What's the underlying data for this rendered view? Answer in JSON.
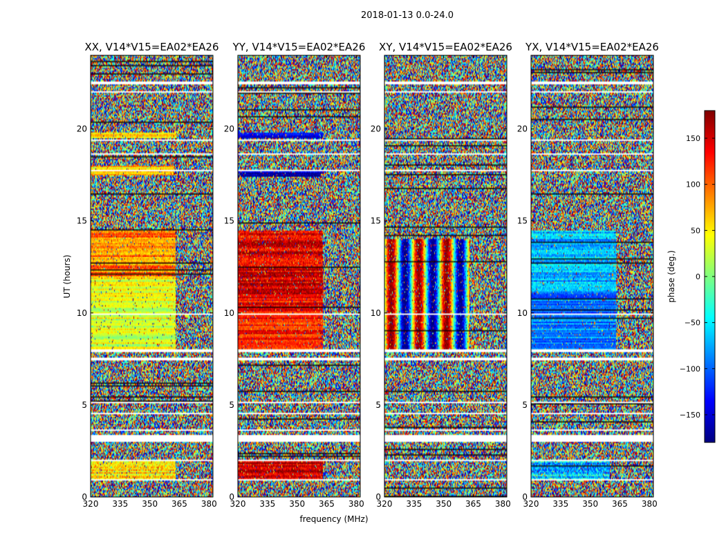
{
  "chart_data": {
    "type": "heatmap",
    "suptitle": "2018-01-13 0.0-24.0",
    "xlabel": "frequency (MHz)",
    "ylabel": "UT (hours)",
    "colorbar_label": "phase (deg.)",
    "xlim": [
      320,
      382
    ],
    "ylim": [
      0,
      24
    ],
    "x_ticks": [
      "320",
      "335",
      "350",
      "365",
      "380"
    ],
    "y_ticks": [
      "0",
      "5",
      "10",
      "15",
      "20"
    ],
    "colorbar_range": [
      -180,
      180
    ],
    "colorbar_ticks": [
      "150",
      "100",
      "50",
      "0",
      "−50",
      "−100",
      "−150"
    ],
    "colormap": [
      "#00007f",
      "#0000ff",
      "#007fff",
      "#00ffff",
      "#7fff7f",
      "#ffff00",
      "#ff7f00",
      "#ff0000",
      "#7f0000"
    ],
    "gap_hours": [
      [
        3.0,
        3.35
      ],
      [
        7.45,
        7.6
      ],
      [
        7.85,
        8.0
      ],
      [
        0.9,
        0.97
      ],
      [
        1.95,
        2.0
      ],
      [
        3.6,
        3.65
      ],
      [
        4.5,
        4.55
      ],
      [
        5.1,
        5.15
      ],
      [
        19.35,
        19.45
      ],
      [
        21.95,
        22.05
      ],
      [
        22.45,
        22.55
      ],
      [
        17.7,
        17.75
      ],
      [
        18.6,
        18.7
      ],
      [
        9.9,
        9.95
      ],
      [
        12.2,
        12.25
      ]
    ],
    "panels": [
      {
        "title": "XX, V14*V15=EA02*EA26",
        "coherent": [
          {
            "t0": 8.0,
            "t1": 11.0,
            "f1": 363,
            "phase": 30,
            "spread": 30
          },
          {
            "t0": 11.0,
            "t1": 12.0,
            "f1": 363,
            "phase": 40,
            "spread": 40
          },
          {
            "t0": 12.0,
            "t1": 14.5,
            "f1": 363,
            "phase": 90,
            "spread": 50
          },
          {
            "t0": 1.0,
            "t1": 2.0,
            "f1": 363,
            "phase": 60,
            "spread": 70
          },
          {
            "t0": 17.5,
            "t1": 18.0,
            "f1": 362,
            "phase": 70,
            "spread": 40
          },
          {
            "t0": 19.5,
            "t1": 19.8,
            "f1": 363,
            "phase": 60,
            "spread": 40
          }
        ]
      },
      {
        "title": "YY, V14*V15=EA02*EA26",
        "coherent": [
          {
            "t0": 8.0,
            "t1": 11.0,
            "f1": 363,
            "phase": 130,
            "spread": 40
          },
          {
            "t0": 11.0,
            "t1": 14.5,
            "f1": 363,
            "phase": 150,
            "spread": 60
          },
          {
            "t0": 1.0,
            "t1": 2.0,
            "f1": 363,
            "phase": 160,
            "spread": 60
          },
          {
            "t0": 17.4,
            "t1": 17.8,
            "f1": 362,
            "phase": -160,
            "spread": 40
          },
          {
            "t0": 19.5,
            "t1": 19.8,
            "f1": 363,
            "phase": -150,
            "spread": 40
          }
        ]
      },
      {
        "title": "XY, V14*V15=EA02*EA26",
        "stripes": {
          "t0": 8.0,
          "t1": 14.0,
          "f1": 363,
          "period": 7.0
        }
      },
      {
        "title": "YX, V14*V15=EA02*EA26",
        "coherent": [
          {
            "t0": 8.0,
            "t1": 11.0,
            "f1": 363,
            "phase": -90,
            "spread": 30
          },
          {
            "t0": 11.0,
            "t1": 14.5,
            "f1": 363,
            "phase": -70,
            "spread": 50
          },
          {
            "t0": 1.0,
            "t1": 2.0,
            "f1": 360,
            "phase": -60,
            "spread": 90
          }
        ]
      }
    ]
  }
}
